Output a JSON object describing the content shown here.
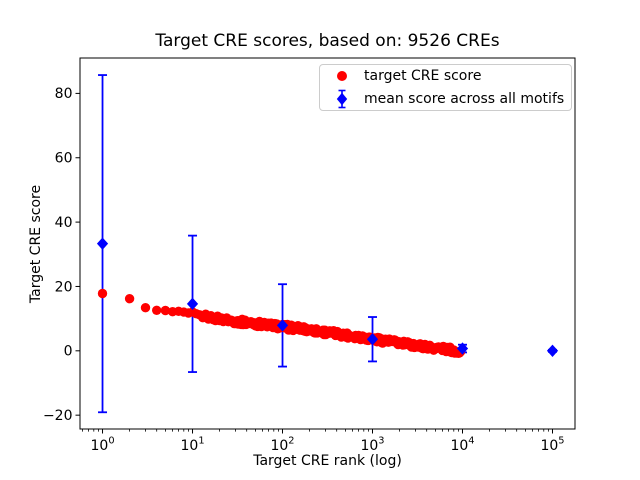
{
  "chart_data": {
    "type": "scatter",
    "title": "Target CRE scores, based on: 9526 CREs",
    "xlabel": "Target CRE rank (log)",
    "ylabel": "Target CRE score",
    "xscale": "log",
    "xlim": [
      0.562,
      177828
    ],
    "ylim": [
      -24.3,
      91.0
    ],
    "grid": false,
    "x_tick_exponents": [
      0,
      1,
      2,
      3,
      4,
      5
    ],
    "x_tick_labels": [
      "10^0",
      "10^1",
      "10^2",
      "10^3",
      "10^4",
      "10^5"
    ],
    "y_ticks": [
      -20,
      0,
      20,
      40,
      60,
      80
    ],
    "y_tick_labels": [
      "−20",
      "0",
      "20",
      "40",
      "60",
      "80"
    ],
    "legend_position": "upper right",
    "series": [
      {
        "name": "target CRE score",
        "type": "scatter",
        "marker": "circle",
        "color": "#ff0000",
        "n_points": 9526,
        "anchors": [
          [
            1,
            17.8
          ],
          [
            2,
            16.2
          ],
          [
            3,
            13.4
          ],
          [
            4,
            12.6
          ],
          [
            5,
            12.3
          ],
          [
            6,
            12.1
          ],
          [
            7,
            11.9
          ],
          [
            8,
            11.7
          ],
          [
            9,
            11.5
          ],
          [
            10,
            11.3
          ],
          [
            15,
            10.5
          ],
          [
            20,
            9.9
          ],
          [
            30,
            9.2
          ],
          [
            50,
            8.5
          ],
          [
            70,
            8.0
          ],
          [
            100,
            7.5
          ],
          [
            150,
            7.0
          ],
          [
            200,
            6.5
          ],
          [
            300,
            5.8
          ],
          [
            500,
            4.9
          ],
          [
            700,
            4.4
          ],
          [
            1000,
            3.7
          ],
          [
            1500,
            3.0
          ],
          [
            2000,
            2.4
          ],
          [
            3000,
            1.7
          ],
          [
            5000,
            0.9
          ],
          [
            7000,
            0.4
          ],
          [
            9526,
            -0.3
          ]
        ]
      },
      {
        "name": "mean score across all motifs",
        "type": "errorbar",
        "marker": "diamond",
        "color": "#0000ff",
        "points": [
          {
            "rank": 1,
            "mean": 33.3,
            "err": 52.4
          },
          {
            "rank": 10,
            "mean": 14.6,
            "err": 21.2
          },
          {
            "rank": 100,
            "mean": 7.9,
            "err": 12.8
          },
          {
            "rank": 1000,
            "mean": 3.6,
            "err": 6.9
          },
          {
            "rank": 10000,
            "mean": 0.7,
            "err": 1.2
          },
          {
            "rank": 100000,
            "mean": 0.0,
            "err": 0.3
          }
        ]
      }
    ]
  },
  "legend": {
    "items": [
      {
        "label": "target CRE score"
      },
      {
        "label": "mean score across all motifs"
      }
    ]
  },
  "colors": {
    "target_score": "#ff0000",
    "mean_score": "#0000ff",
    "frame": "#000000",
    "legend_border": "#cccccc",
    "background": "#ffffff"
  }
}
